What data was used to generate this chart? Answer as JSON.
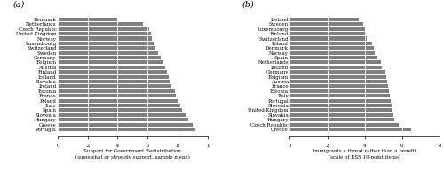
{
  "panel_a": {
    "label": "(a)",
    "countries": [
      "Denmark",
      "Netherlands",
      "Czech Republic",
      "United Kingdom",
      "Norway",
      "Luxembourg",
      "Switzerland",
      "Sweden",
      "Germany",
      "Belgium",
      "Austria",
      "Finland",
      "Iceland",
      "Slovakia",
      "Ireland",
      "Estonia",
      "France",
      "Poland",
      "Italy",
      "Spain",
      "Slovenia",
      "Hungary",
      "Greece",
      "Portugal"
    ],
    "values": [
      0.4,
      0.57,
      0.61,
      0.62,
      0.63,
      0.64,
      0.65,
      0.67,
      0.69,
      0.7,
      0.72,
      0.73,
      0.74,
      0.75,
      0.76,
      0.78,
      0.79,
      0.8,
      0.82,
      0.83,
      0.86,
      0.87,
      0.9,
      0.92
    ],
    "xlabel": "Support for Government Redistribution\n(somewhat or strongly support, sample mean)",
    "xlim": [
      0,
      1
    ],
    "xticks": [
      0,
      0.2,
      0.4,
      0.6,
      0.8,
      1.0
    ],
    "xticklabels": [
      "0",
      ".2",
      ".4",
      ".6",
      ".8",
      "1"
    ],
    "bar_color": "#7f7f7f"
  },
  "panel_b": {
    "label": "(b)",
    "countries": [
      "Iceland",
      "Sweden",
      "Luxembourg",
      "Finland",
      "Switzerland",
      "Poland",
      "Denmark",
      "Norway",
      "Spain",
      "Netherlands",
      "Ireland",
      "Germany",
      "Belgium",
      "Austria",
      "France",
      "Estonia",
      "Italy",
      "Portugal",
      "Slovenia",
      "United Kingdom",
      "Slovakia",
      "Hungary",
      "Czech Republic",
      "Greece"
    ],
    "values": [
      3.7,
      3.9,
      4.0,
      4.05,
      4.1,
      4.4,
      4.5,
      4.55,
      4.7,
      4.85,
      4.9,
      5.1,
      5.15,
      5.2,
      5.25,
      5.3,
      5.35,
      5.4,
      5.45,
      5.5,
      5.55,
      5.6,
      5.8,
      6.5
    ],
    "xlabel": "Immigrants a threat rather than a benefit\n(scale of ESS 10-point items)",
    "xlim": [
      0,
      8
    ],
    "xticks": [
      0,
      2,
      4,
      6,
      8
    ],
    "xticklabels": [
      "0",
      "2",
      "4",
      "6",
      "8"
    ],
    "bar_color": "#7f7f7f"
  },
  "figure_bgcolor": "#ffffff",
  "bar_height": 0.75,
  "fontsize_label": 4.0,
  "fontsize_tick": 4.0,
  "fontsize_panel": 7,
  "fontsize_xlabel": 4.0
}
